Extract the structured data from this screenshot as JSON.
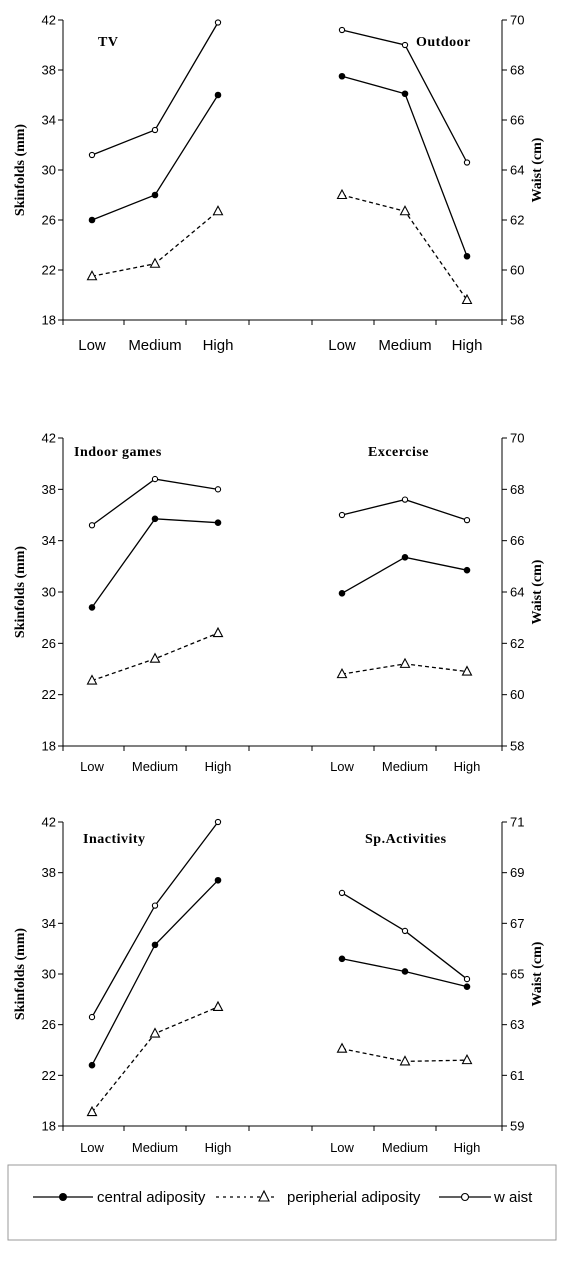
{
  "chart_data": [
    {
      "type": "line",
      "categories": [
        "Low",
        "Medium",
        "High"
      ],
      "y_left": {
        "label": "Skinfolds (mm)",
        "ylim": [
          18,
          42
        ],
        "ticks": [
          18,
          22,
          26,
          30,
          34,
          38,
          42
        ]
      },
      "y_right": {
        "label": "Waist (cm)",
        "ylim": [
          58,
          70
        ],
        "ticks": [
          58,
          60,
          62,
          64,
          66,
          68,
          70
        ]
      },
      "grid": false,
      "panels": [
        {
          "title": "TV",
          "series": [
            {
              "name": "central adiposity",
              "axis": "left",
              "values": [
                26.0,
                28.0,
                36.0
              ]
            },
            {
              "name": "peripherial adiposity",
              "axis": "left",
              "values": [
                21.5,
                22.5,
                26.7
              ]
            },
            {
              "name": "waist",
              "axis": "right",
              "values": [
                64.6,
                65.6,
                69.9
              ]
            }
          ]
        },
        {
          "title": "Outdoor",
          "series": [
            {
              "name": "central adiposity",
              "axis": "left",
              "values": [
                37.5,
                36.1,
                23.1
              ]
            },
            {
              "name": "peripherial adiposity",
              "axis": "left",
              "values": [
                28.0,
                26.7,
                19.6
              ]
            },
            {
              "name": "waist",
              "axis": "right",
              "values": [
                69.6,
                69.0,
                64.3
              ]
            }
          ]
        }
      ]
    },
    {
      "type": "line",
      "categories": [
        "Low",
        "Medium",
        "High"
      ],
      "y_left": {
        "label": "Skinfolds (mm)",
        "ylim": [
          18,
          42
        ],
        "ticks": [
          18,
          22,
          26,
          30,
          34,
          38,
          42
        ]
      },
      "y_right": {
        "label": "Waist (cm)",
        "ylim": [
          58,
          70
        ],
        "ticks": [
          58,
          60,
          62,
          64,
          66,
          68,
          70
        ]
      },
      "grid": false,
      "panels": [
        {
          "title": "Indoor games",
          "series": [
            {
              "name": "central adiposity",
              "axis": "left",
              "values": [
                28.8,
                35.7,
                35.4
              ]
            },
            {
              "name": "peripherial adiposity",
              "axis": "left",
              "values": [
                23.1,
                24.8,
                26.8
              ]
            },
            {
              "name": "waist",
              "axis": "right",
              "values": [
                66.6,
                68.4,
                68.0
              ]
            }
          ]
        },
        {
          "title": "Excercise",
          "series": [
            {
              "name": "central adiposity",
              "axis": "left",
              "values": [
                29.9,
                32.7,
                31.7
              ]
            },
            {
              "name": "peripherial adiposity",
              "axis": "left",
              "values": [
                23.6,
                24.4,
                23.8
              ]
            },
            {
              "name": "waist",
              "axis": "right",
              "values": [
                67.0,
                67.6,
                66.8
              ]
            }
          ]
        }
      ]
    },
    {
      "type": "line",
      "categories": [
        "Low",
        "Medium",
        "High"
      ],
      "y_left": {
        "label": "Skinfolds (mm)",
        "ylim": [
          18,
          42
        ],
        "ticks": [
          18,
          22,
          26,
          30,
          34,
          38,
          42
        ]
      },
      "y_right": {
        "label": "Waist (cm)",
        "ylim": [
          59,
          71
        ],
        "ticks": [
          59,
          61,
          63,
          65,
          67,
          69,
          71
        ]
      },
      "grid": false,
      "panels": [
        {
          "title": "Inactivity",
          "series": [
            {
              "name": "central adiposity",
              "axis": "left",
              "values": [
                22.8,
                32.3,
                37.4
              ]
            },
            {
              "name": "peripherial adiposity",
              "axis": "left",
              "values": [
                19.1,
                25.3,
                27.4
              ]
            },
            {
              "name": "waist",
              "axis": "right",
              "values": [
                63.3,
                67.7,
                71.0
              ]
            }
          ]
        },
        {
          "title": "Sp.Activities",
          "series": [
            {
              "name": "central adiposity",
              "axis": "left",
              "values": [
                31.2,
                30.2,
                29.0
              ]
            },
            {
              "name": "peripherial adiposity",
              "axis": "left",
              "values": [
                24.1,
                23.1,
                23.2
              ]
            },
            {
              "name": "waist",
              "axis": "right",
              "values": [
                68.2,
                66.7,
                64.8
              ]
            }
          ]
        }
      ]
    }
  ],
  "legend": {
    "placement": "bottom",
    "items": [
      {
        "label": "central adiposity",
        "marker": "filled-circle",
        "line": "solid"
      },
      {
        "label": "peripherial adiposity",
        "marker": "open-triangle",
        "line": "dashed"
      },
      {
        "label": "w aist",
        "marker": "open-circle",
        "line": "solid"
      }
    ]
  }
}
